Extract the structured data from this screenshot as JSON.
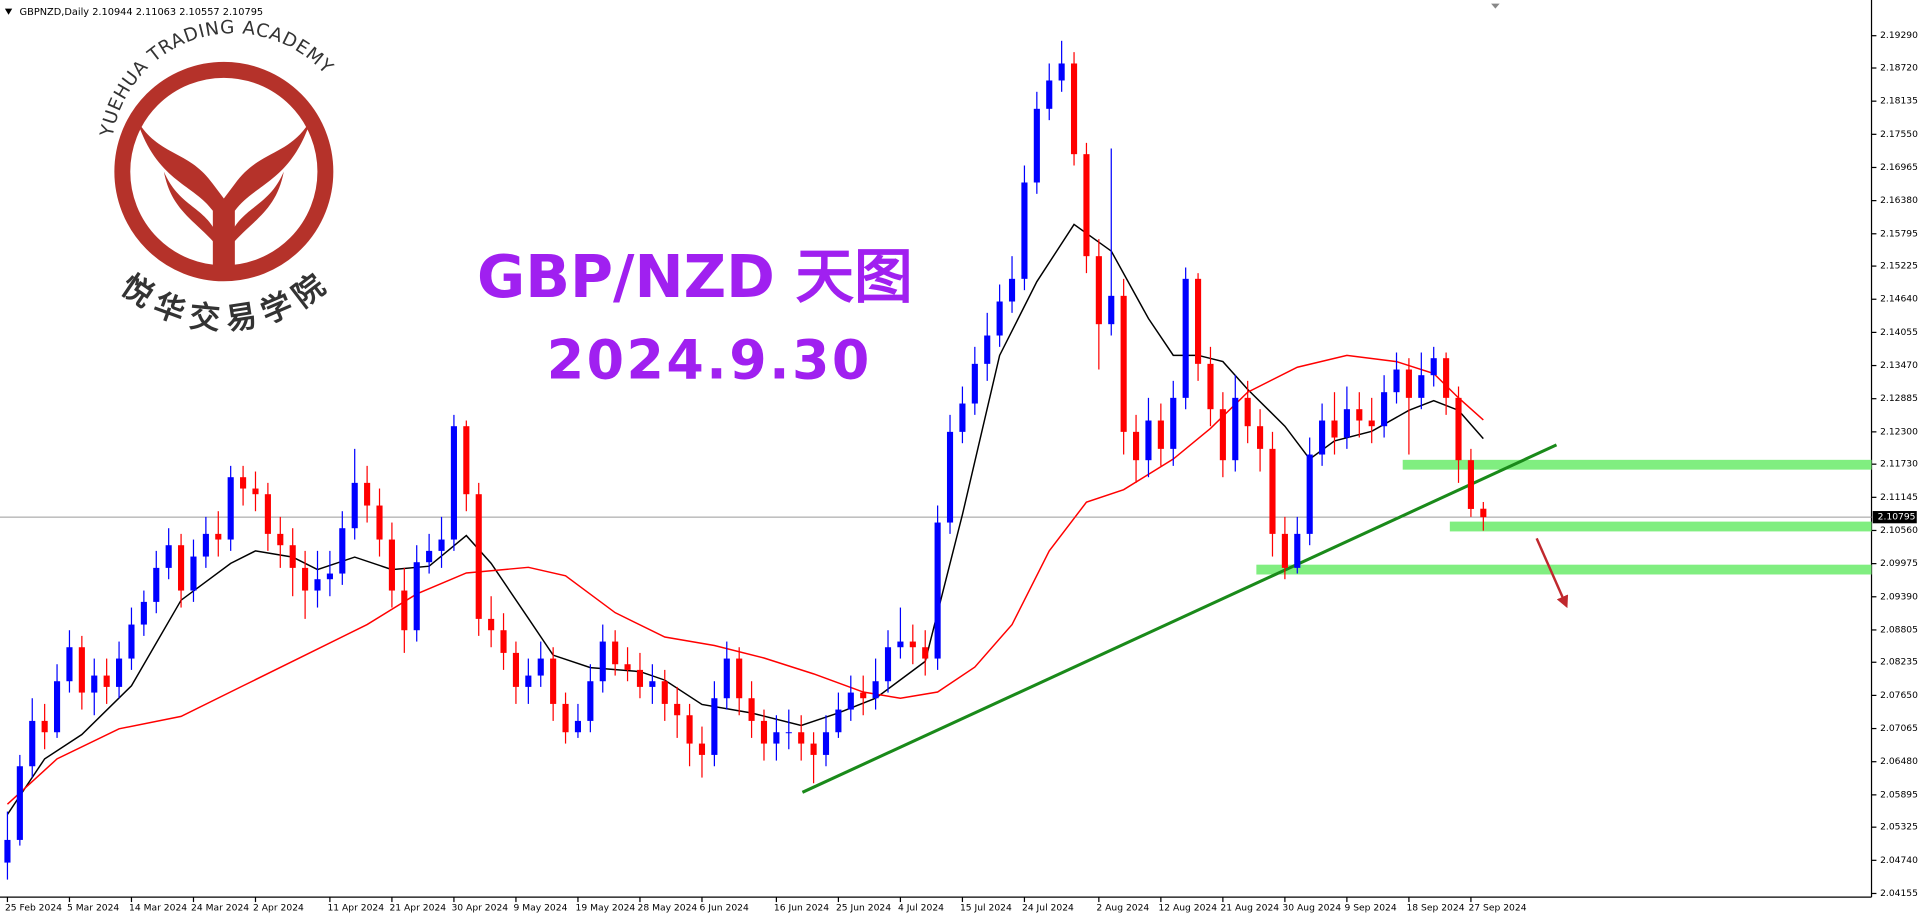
{
  "chart_data": {
    "type": "candlestick",
    "title": "GBPNZD,Daily  2.10944 2.11063 2.10557 2.10795",
    "bull_color": "#0000ff",
    "bear_color": "#ff0000",
    "xlim": [
      -0.6,
      150.3
    ],
    "ylim": [
      2.0409,
      2.1992
    ],
    "grid": false,
    "xticks": [
      {
        "value": 0,
        "label": "25 Feb 2024"
      },
      {
        "value": 5,
        "label": "5 Mar 2024"
      },
      {
        "value": 10,
        "label": "14 Mar 2024"
      },
      {
        "value": 15,
        "label": "24 Mar 2024"
      },
      {
        "value": 20,
        "label": "2 Apr 2024"
      },
      {
        "value": 26,
        "label": "11 Apr 2024"
      },
      {
        "value": 31,
        "label": "21 Apr 2024"
      },
      {
        "value": 36,
        "label": "30 Apr 2024"
      },
      {
        "value": 41,
        "label": "9 May 2024"
      },
      {
        "value": 46,
        "label": "19 May 2024"
      },
      {
        "value": 51,
        "label": "28 May 2024"
      },
      {
        "value": 56,
        "label": "6 Jun 2024"
      },
      {
        "value": 62,
        "label": "16 Jun 2024"
      },
      {
        "value": 67,
        "label": "25 Jun 2024"
      },
      {
        "value": 72,
        "label": "4 Jul 2024"
      },
      {
        "value": 77,
        "label": "15 Jul 2024"
      },
      {
        "value": 82,
        "label": "24 Jul 2024"
      },
      {
        "value": 88,
        "label": "2 Aug 2024"
      },
      {
        "value": 93,
        "label": "12 Aug 2024"
      },
      {
        "value": 98,
        "label": "21 Aug 2024"
      },
      {
        "value": 103,
        "label": "30 Aug 2024"
      },
      {
        "value": 108,
        "label": "9 Sep 2024"
      },
      {
        "value": 113,
        "label": "18 Sep 2024"
      },
      {
        "value": 118,
        "label": "27 Sep 2024"
      }
    ],
    "yticks": [
      2.04155,
      {
        "value": 2.0474,
        "label": "2.04740"
      },
      2.05325,
      2.05895,
      {
        "value": 2.0648,
        "label": "2.06480"
      },
      2.07065,
      {
        "value": 2.0765,
        "label": "2.07650"
      },
      2.08235,
      2.08805,
      {
        "value": 2.0939,
        "label": "2.09390"
      },
      2.09975,
      {
        "value": 2.1056,
        "label": "2.10560"
      },
      2.11145,
      {
        "value": 2.1173,
        "label": "2.11730"
      },
      {
        "value": 2.123,
        "label": "2.12300"
      },
      2.12885,
      {
        "value": 2.1347,
        "label": "2.13470"
      },
      2.14055,
      {
        "value": 2.1464,
        "label": "2.14640"
      },
      2.15225,
      2.15795,
      {
        "value": 2.1638,
        "label": "2.16380"
      },
      2.16965,
      {
        "value": 2.1755,
        "label": "2.17550"
      },
      2.18135,
      {
        "value": 2.1872,
        "label": "2.18720"
      },
      {
        "value": 2.1929,
        "label": "2.19290"
      }
    ],
    "open": [
      2.047,
      2.051,
      2.064,
      2.072,
      2.07,
      2.079,
      2.085,
      2.077,
      2.08,
      2.078,
      2.083,
      2.089,
      2.093,
      2.099,
      2.103,
      2.095,
      2.101,
      2.105,
      2.104,
      2.115,
      2.113,
      2.112,
      2.105,
      2.103,
      2.099,
      2.095,
      2.097,
      2.098,
      2.106,
      2.114,
      2.11,
      2.104,
      2.095,
      2.088,
      2.1,
      2.102,
      2.104,
      2.124,
      2.112,
      2.09,
      2.088,
      2.084,
      2.078,
      2.08,
      2.083,
      2.075,
      2.07,
      2.072,
      2.079,
      2.086,
      2.082,
      2.081,
      2.078,
      2.079,
      2.075,
      2.073,
      2.068,
      2.066,
      2.076,
      2.083,
      2.076,
      2.072,
      2.068,
      2.07,
      2.07,
      2.068,
      2.066,
      2.07,
      2.074,
      2.077,
      2.076,
      2.079,
      2.085,
      2.086,
      2.085,
      2.083,
      2.107,
      2.123,
      2.128,
      2.135,
      2.14,
      2.146,
      2.15,
      2.167,
      2.18,
      2.185,
      2.188,
      2.172,
      2.154,
      2.142,
      2.147,
      2.123,
      2.118,
      2.125,
      2.12,
      2.129,
      2.15,
      2.135,
      2.127,
      2.118,
      2.129,
      2.124,
      2.12,
      2.105,
      2.099,
      2.105,
      2.119,
      2.125,
      2.122,
      2.127,
      2.125,
      2.124,
      2.13,
      2.134,
      2.129,
      2.133,
      2.136,
      2.129,
      2.118,
      2.10944
    ],
    "high": [
      2.056,
      2.066,
      2.076,
      2.075,
      2.082,
      2.088,
      2.087,
      2.083,
      2.083,
      2.086,
      2.092,
      2.095,
      2.102,
      2.106,
      2.105,
      2.104,
      2.108,
      2.109,
      2.117,
      2.117,
      2.116,
      2.114,
      2.108,
      2.106,
      2.102,
      2.102,
      2.102,
      2.109,
      2.12,
      2.117,
      2.113,
      2.107,
      2.099,
      2.103,
      2.105,
      2.108,
      2.126,
      2.125,
      2.114,
      2.094,
      2.091,
      2.086,
      2.083,
      2.086,
      2.085,
      2.077,
      2.075,
      2.082,
      2.089,
      2.088,
      2.085,
      2.084,
      2.082,
      2.081,
      2.078,
      2.075,
      2.071,
      2.079,
      2.086,
      2.085,
      2.079,
      2.074,
      2.073,
      2.074,
      2.073,
      2.07,
      2.073,
      2.077,
      2.08,
      2.08,
      2.083,
      2.088,
      2.092,
      2.089,
      2.088,
      2.11,
      2.126,
      2.131,
      2.138,
      2.144,
      2.149,
      2.154,
      2.17,
      2.183,
      2.188,
      2.192,
      2.19,
      2.174,
      2.157,
      2.173,
      2.15,
      2.126,
      2.129,
      2.128,
      2.132,
      2.152,
      2.151,
      2.138,
      2.13,
      2.133,
      2.132,
      2.127,
      2.123,
      2.108,
      2.108,
      2.122,
      2.128,
      2.13,
      2.131,
      2.13,
      2.129,
      2.133,
      2.137,
      2.136,
      2.137,
      2.138,
      2.137,
      2.131,
      2.12,
      2.11063
    ],
    "low": [
      2.044,
      2.05,
      2.062,
      2.067,
      2.069,
      2.077,
      2.074,
      2.073,
      2.075,
      2.076,
      2.081,
      2.087,
      2.091,
      2.097,
      2.092,
      2.093,
      2.099,
      2.101,
      2.102,
      2.11,
      2.109,
      2.102,
      2.099,
      2.094,
      2.09,
      2.092,
      2.094,
      2.096,
      2.104,
      2.107,
      2.101,
      2.092,
      2.084,
      2.086,
      2.098,
      2.099,
      2.102,
      2.109,
      2.087,
      2.085,
      2.081,
      2.075,
      2.075,
      2.078,
      2.072,
      2.068,
      2.069,
      2.07,
      2.077,
      2.08,
      2.079,
      2.076,
      2.075,
      2.072,
      2.069,
      2.064,
      2.062,
      2.064,
      2.074,
      2.073,
      2.069,
      2.065,
      2.065,
      2.067,
      2.065,
      2.061,
      2.064,
      2.069,
      2.072,
      2.073,
      2.074,
      2.077,
      2.083,
      2.082,
      2.08,
      2.081,
      2.105,
      2.121,
      2.126,
      2.132,
      2.138,
      2.144,
      2.148,
      2.165,
      2.178,
      2.183,
      2.17,
      2.151,
      2.134,
      2.14,
      2.119,
      2.114,
      2.115,
      2.117,
      2.117,
      2.127,
      2.132,
      2.124,
      2.115,
      2.116,
      2.121,
      2.116,
      2.101,
      2.097,
      2.098,
      2.103,
      2.117,
      2.119,
      2.12,
      2.122,
      2.121,
      2.122,
      2.128,
      2.119,
      2.127,
      2.131,
      2.126,
      2.114,
      2.108,
      2.10557
    ],
    "close": [
      2.051,
      2.064,
      2.072,
      2.07,
      2.079,
      2.085,
      2.077,
      2.08,
      2.078,
      2.083,
      2.089,
      2.093,
      2.099,
      2.103,
      2.095,
      2.101,
      2.105,
      2.104,
      2.115,
      2.113,
      2.112,
      2.105,
      2.103,
      2.099,
      2.095,
      2.097,
      2.098,
      2.106,
      2.114,
      2.11,
      2.104,
      2.095,
      2.088,
      2.1,
      2.102,
      2.104,
      2.124,
      2.112,
      2.09,
      2.088,
      2.084,
      2.078,
      2.08,
      2.083,
      2.075,
      2.07,
      2.072,
      2.079,
      2.086,
      2.082,
      2.081,
      2.078,
      2.079,
      2.075,
      2.073,
      2.068,
      2.066,
      2.076,
      2.083,
      2.076,
      2.072,
      2.068,
      2.07,
      2.07,
      2.068,
      2.066,
      2.07,
      2.074,
      2.077,
      2.076,
      2.079,
      2.085,
      2.086,
      2.085,
      2.083,
      2.107,
      2.123,
      2.128,
      2.135,
      2.14,
      2.146,
      2.15,
      2.167,
      2.18,
      2.185,
      2.188,
      2.172,
      2.154,
      2.142,
      2.147,
      2.123,
      2.118,
      2.125,
      2.12,
      2.129,
      2.15,
      2.135,
      2.127,
      2.118,
      2.129,
      2.124,
      2.12,
      2.105,
      2.099,
      2.105,
      2.119,
      2.125,
      2.122,
      2.127,
      2.125,
      2.124,
      2.13,
      2.134,
      2.129,
      2.133,
      2.136,
      2.129,
      2.118,
      2.1094,
      2.10795
    ],
    "moving_averages": [
      {
        "color": "#000000",
        "x": [
          0,
          3,
          6,
          10,
          14,
          18,
          20,
          23,
          25,
          28,
          31,
          34,
          37,
          39,
          42,
          44,
          47,
          51,
          53,
          56,
          60,
          64,
          67,
          70,
          74,
          77,
          80,
          83,
          86,
          89,
          92,
          94,
          96,
          98,
          100,
          103,
          105,
          107,
          110,
          113,
          115,
          117,
          119
        ],
        "values": [
          2.0555,
          2.0653,
          2.0696,
          2.0782,
          2.0933,
          2.0998,
          2.102,
          2.1009,
          2.0987,
          2.1009,
          2.0987,
          2.0993,
          2.1047,
          2.0998,
          2.0901,
          2.0836,
          2.0814,
          2.0807,
          2.0792,
          2.0749,
          2.0734,
          2.0712,
          2.0734,
          2.076,
          2.0825,
          2.1084,
          2.1365,
          2.1495,
          2.1596,
          2.1549,
          2.143,
          2.1365,
          2.1365,
          2.1354,
          2.1305,
          2.124,
          2.1182,
          2.1214,
          2.1231,
          2.1268,
          2.1285,
          2.1268,
          2.1218
        ]
      },
      {
        "color": "#ff0000",
        "x": [
          0,
          4,
          9,
          14,
          19,
          24,
          29,
          33,
          37,
          42,
          45,
          49,
          53,
          57,
          61,
          65,
          69,
          72,
          75,
          78,
          81,
          84,
          87,
          90,
          94,
          97,
          100,
          104,
          108,
          112,
          115,
          117,
          119
        ],
        "values": [
          2.0573,
          2.0653,
          2.0706,
          2.0728,
          2.0782,
          2.0836,
          2.089,
          2.0944,
          2.0981,
          2.0991,
          2.0976,
          2.0911,
          2.0868,
          2.0853,
          2.0831,
          2.0803,
          2.0771,
          2.076,
          2.0771,
          2.0815,
          2.089,
          2.102,
          2.1106,
          2.1128,
          2.1182,
          2.1236,
          2.13,
          2.1344,
          2.1365,
          2.1354,
          2.1333,
          2.129,
          2.1251
        ]
      }
    ],
    "current_price": 2.10795,
    "zones": [
      {
        "level": 2.1172,
        "from": 112.5
      },
      {
        "level": 2.1063,
        "from": 116.3
      },
      {
        "level": 2.0987,
        "from": 100.7
      }
    ],
    "zone_color": "#80ee80",
    "trendline": {
      "color": "#1a8a1a",
      "x": [
        64.1,
        124.9
      ],
      "values": [
        2.0594,
        2.1207
      ]
    },
    "arrow": {
      "color": "#c0282d",
      "x": [
        123.3,
        125.7
      ],
      "values": [
        2.1042,
        2.0923
      ]
    },
    "annotations": [
      "GBP/NZD 天图",
      "2024.9.30"
    ],
    "watermark": {
      "top_text": "YUEHUA TRADING ACADEMY",
      "bottom_text": "悦华交易学院"
    }
  }
}
